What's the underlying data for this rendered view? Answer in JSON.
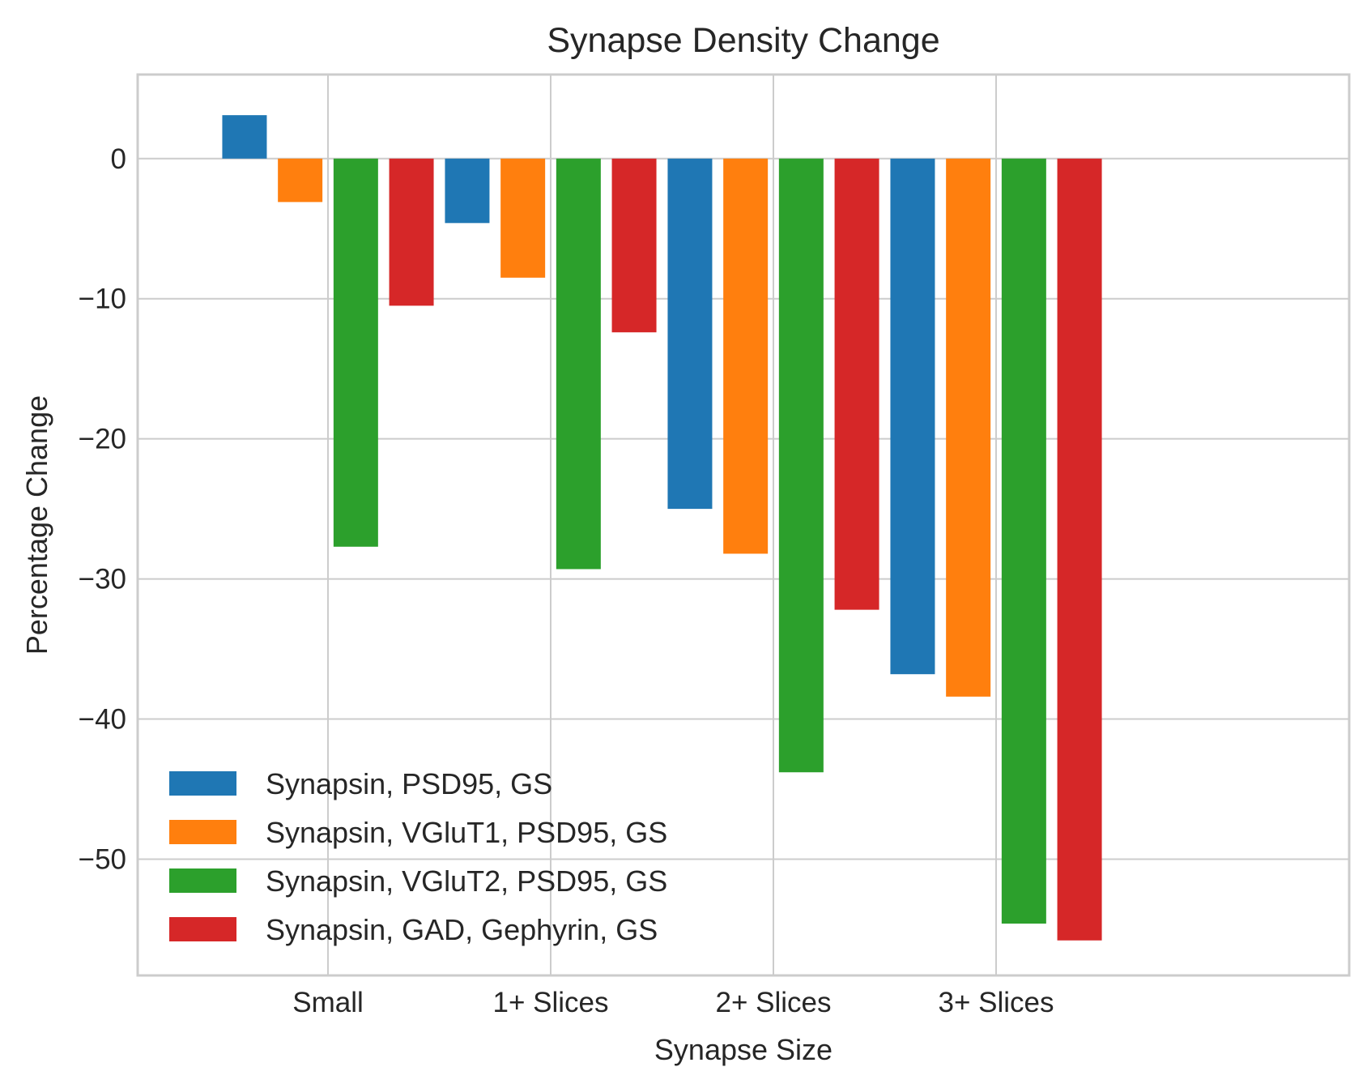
{
  "chart_data": {
    "type": "bar",
    "title": "Synapse Density Change",
    "xlabel": "Synapse Size",
    "ylabel": "Percentage Change",
    "categories": [
      "Small",
      "1+ Slices",
      "2+ Slices",
      "3+ Slices"
    ],
    "ylim": [
      -58.3,
      6.0
    ],
    "yticks": [
      0,
      -10,
      -20,
      -30,
      -40,
      -50
    ],
    "ytick_labels": [
      "0",
      "−10",
      "−20",
      "−30",
      "−40",
      "−50"
    ],
    "grid": true,
    "legend_position": "lower-left",
    "series": [
      {
        "name": "Synapsin, PSD95, GS",
        "color": "#1f77b4",
        "values": [
          3.1,
          -4.6,
          -25.0,
          -36.8
        ]
      },
      {
        "name": "Synapsin, VGluT1, PSD95, GS",
        "color": "#ff7f0e",
        "values": [
          -3.1,
          -8.5,
          -28.2,
          -38.4
        ]
      },
      {
        "name": "Synapsin, VGluT2, PSD95, GS",
        "color": "#2ca02c",
        "values": [
          -27.7,
          -29.3,
          -43.8,
          -54.6
        ]
      },
      {
        "name": "Synapsin, GAD, Gephyrin, GS",
        "color": "#d62728",
        "values": [
          -10.5,
          -12.4,
          -32.2,
          -55.8
        ]
      }
    ]
  }
}
